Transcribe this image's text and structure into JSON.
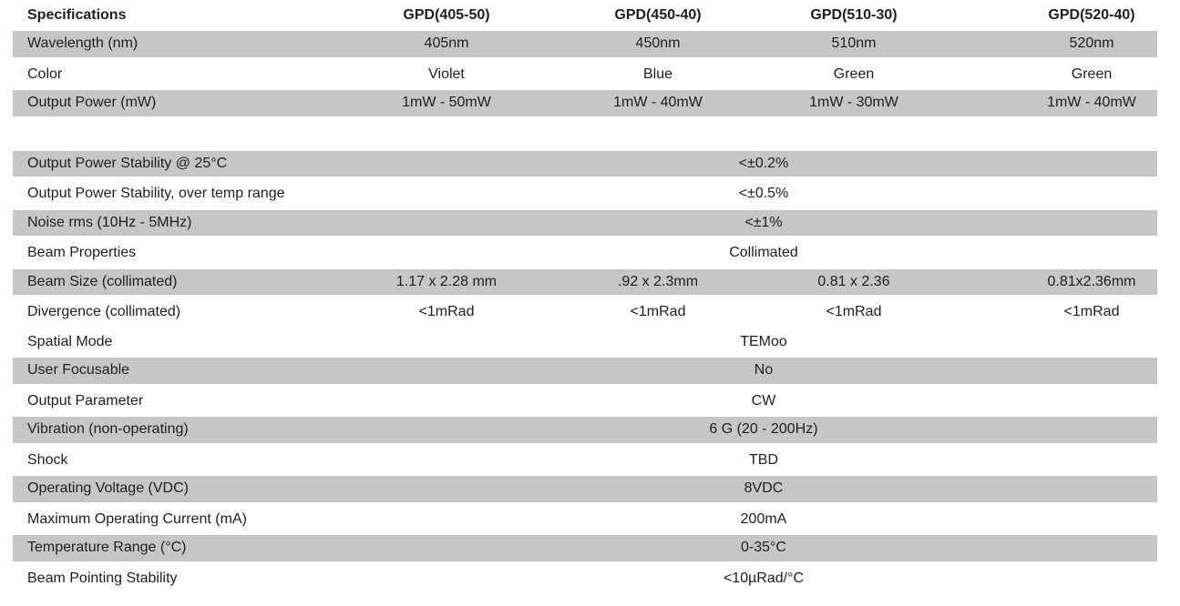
{
  "colors": {
    "stripe_gray": "#c6c6c6",
    "text": "#1f1f1f",
    "background": "#ffffff"
  },
  "table": {
    "header": {
      "label": "Specifications",
      "columns": [
        "GPD(405-50)",
        "GPD(450-40)",
        "GPD(510-30)",
        "GPD(520-40)"
      ]
    },
    "rows": [
      {
        "label": "Wavelength (nm)",
        "shade": "gray",
        "values": [
          "405nm",
          "450nm",
          "510nm",
          "520nm"
        ]
      },
      {
        "label": "Color",
        "shade": "white",
        "values": [
          "Violet",
          "Blue",
          "Green",
          "Green"
        ]
      },
      {
        "label": "Output Power (mW)",
        "shade": "gray",
        "values": [
          "1mW - 50mW",
          "1mW - 40mW",
          "1mW - 30mW",
          "1mW - 40mW"
        ]
      },
      {
        "label": "Output Power Stability @ 25°C",
        "shade": "gray",
        "value": "<±0.2%"
      },
      {
        "label": "Output Power Stability, over temp range",
        "shade": "white",
        "value": "<±0.5%"
      },
      {
        "label": "Noise rms (10Hz - 5MHz)",
        "shade": "gray",
        "value": "<±1%"
      },
      {
        "label": "Beam Properties",
        "shade": "white",
        "value": "Collimated"
      },
      {
        "label": "Beam Size (collimated)",
        "shade": "gray",
        "values": [
          "1.17 x 2.28 mm",
          ".92 x 2.3mm",
          "0.81 x 2.36",
          "0.81x2.36mm"
        ]
      },
      {
        "label": "Divergence (collimated)",
        "shade": "white",
        "values": [
          "<1mRad",
          "<1mRad",
          "<1mRad",
          "<1mRad"
        ]
      },
      {
        "label": "Spatial Mode",
        "shade": "white",
        "value": "TEMoo"
      },
      {
        "label": "User Focusable",
        "shade": "gray",
        "value": "No"
      },
      {
        "label": "Output Parameter",
        "shade": "white",
        "value": "CW"
      },
      {
        "label": "Vibration (non-operating)",
        "shade": "gray",
        "value": "6 G (20 - 200Hz)"
      },
      {
        "label": "Shock",
        "shade": "white",
        "value": "TBD"
      },
      {
        "label": "Operating Voltage (VDC)",
        "shade": "gray",
        "value": "8VDC"
      },
      {
        "label": "Maximum Operating Current (mA)",
        "shade": "white",
        "value": "200mA"
      },
      {
        "label": "Temperature Range (°C)",
        "shade": "gray",
        "value": "0-35°C"
      },
      {
        "label": "Beam Pointing Stability",
        "shade": "white",
        "value": "<10µRad/°C"
      }
    ]
  }
}
